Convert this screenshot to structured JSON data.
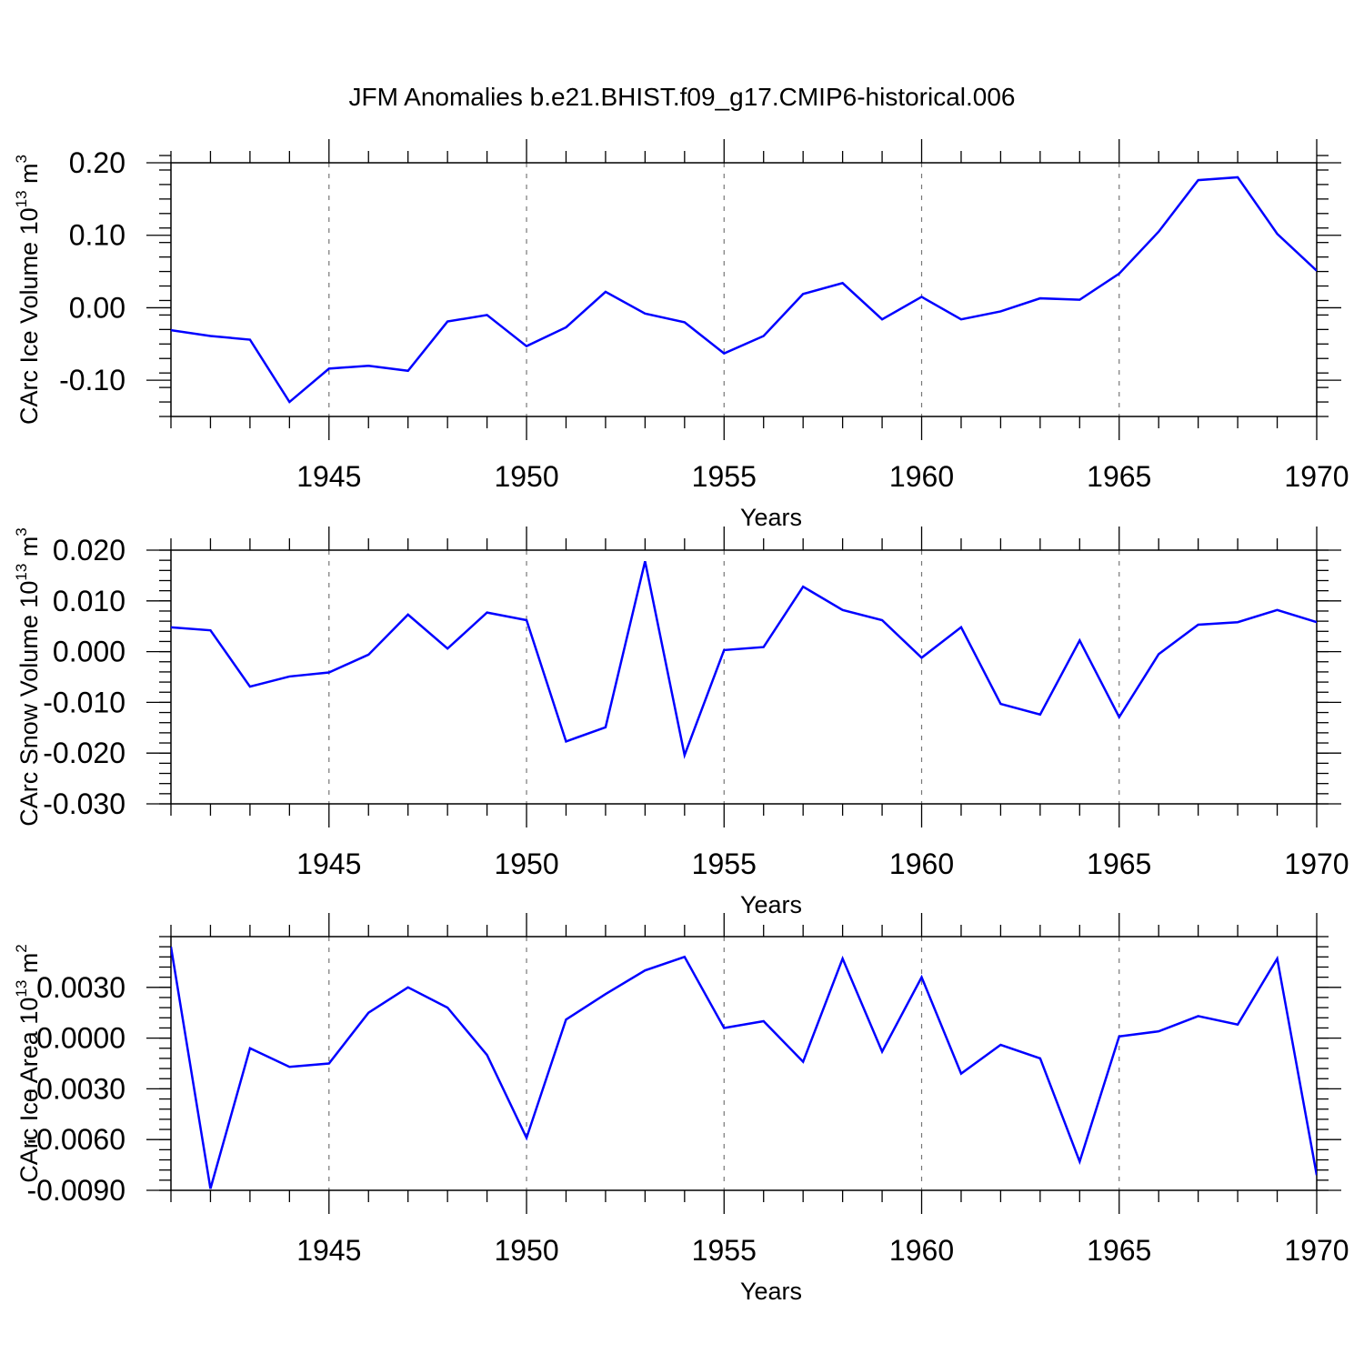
{
  "title": "JFM Anomalies b.e21.BHIST.f09_g17.CMIP6-historical.006",
  "chart_data": [
    {
      "type": "line",
      "name": "ice-volume",
      "ylabel": "CArc Ice Volume 10",
      "ylabel_sup": "13",
      "ylabel_unit": " m",
      "ylabel_unit_sup": "3",
      "xlabel": "Years",
      "xlim": [
        1941,
        1970
      ],
      "ylim": [
        -0.15,
        0.2
      ],
      "yticks": [
        -0.1,
        0.0,
        0.1,
        0.2
      ],
      "ytick_labels": [
        "-0.10",
        "0.00",
        "0.10",
        "0.20"
      ],
      "y_minor_step": 0.02,
      "xticks": [
        1945,
        1950,
        1955,
        1960,
        1965,
        1970
      ],
      "xtick_labels": [
        "1945",
        "1950",
        "1955",
        "1960",
        "1965",
        "1970"
      ],
      "color": "#0000ff",
      "x": [
        1941,
        1942,
        1943,
        1944,
        1945,
        1946,
        1947,
        1948,
        1949,
        1950,
        1951,
        1952,
        1953,
        1954,
        1955,
        1956,
        1957,
        1958,
        1959,
        1960,
        1961,
        1962,
        1963,
        1964,
        1965,
        1966,
        1967,
        1968,
        1969,
        1970
      ],
      "values": [
        -0.031,
        -0.039,
        -0.044,
        -0.13,
        -0.084,
        -0.08,
        -0.087,
        -0.019,
        -0.01,
        -0.053,
        -0.027,
        0.022,
        -0.008,
        -0.02,
        -0.063,
        -0.039,
        0.019,
        0.034,
        -0.016,
        0.015,
        -0.016,
        -0.005,
        0.013,
        0.011,
        0.047,
        0.105,
        0.176,
        0.18,
        0.102,
        0.051
      ]
    },
    {
      "type": "line",
      "name": "snow-volume",
      "ylabel": "CArc Snow Volume 10",
      "ylabel_sup": "13",
      "ylabel_unit": " m",
      "ylabel_unit_sup": "3",
      "xlabel": "Years",
      "xlim": [
        1941,
        1970
      ],
      "ylim": [
        -0.03,
        0.02
      ],
      "yticks": [
        -0.03,
        -0.02,
        -0.01,
        0.0,
        0.01,
        0.02
      ],
      "ytick_labels": [
        "-0.030",
        "-0.020",
        "-0.010",
        "0.000",
        "0.010",
        "0.020"
      ],
      "y_minor_step": 0.002,
      "xticks": [
        1945,
        1950,
        1955,
        1960,
        1965,
        1970
      ],
      "xtick_labels": [
        "1945",
        "1950",
        "1955",
        "1960",
        "1965",
        "1970"
      ],
      "color": "#0000ff",
      "x": [
        1941,
        1942,
        1943,
        1944,
        1945,
        1946,
        1947,
        1948,
        1949,
        1950,
        1951,
        1952,
        1953,
        1954,
        1955,
        1956,
        1957,
        1958,
        1959,
        1960,
        1961,
        1962,
        1963,
        1964,
        1965,
        1966,
        1967,
        1968,
        1969,
        1970
      ],
      "values": [
        0.0048,
        0.0042,
        -0.0069,
        -0.0049,
        -0.0041,
        -0.0006,
        0.0073,
        0.0006,
        0.0077,
        0.0062,
        -0.0177,
        -0.0149,
        0.0178,
        -0.0204,
        0.0003,
        0.0009,
        0.0128,
        0.0082,
        0.0062,
        -0.0012,
        0.0048,
        -0.0103,
        -0.0124,
        0.0022,
        -0.0129,
        -0.0005,
        0.0053,
        0.0058,
        0.0082,
        0.0058
      ]
    },
    {
      "type": "line",
      "name": "ice-area",
      "ylabel": "CArc Ice Area 10",
      "ylabel_sup": "13",
      "ylabel_unit": " m",
      "ylabel_unit_sup": "2",
      "xlabel": "Years",
      "xlim": [
        1941,
        1970
      ],
      "ylim": [
        -0.009,
        0.006
      ],
      "yticks": [
        -0.009,
        -0.006,
        -0.003,
        0.0,
        0.003
      ],
      "ytick_labels": [
        "-0.0090",
        "-0.0060",
        "-0.0030",
        "0.0000",
        "0.0030"
      ],
      "y_minor_step": 0.0006,
      "xticks": [
        1945,
        1950,
        1955,
        1960,
        1965,
        1970
      ],
      "xtick_labels": [
        "1945",
        "1950",
        "1955",
        "1960",
        "1965",
        "1970"
      ],
      "color": "#0000ff",
      "x": [
        1941,
        1942,
        1943,
        1944,
        1945,
        1946,
        1947,
        1948,
        1949,
        1950,
        1951,
        1952,
        1953,
        1954,
        1955,
        1956,
        1957,
        1958,
        1959,
        1960,
        1961,
        1962,
        1963,
        1964,
        1965,
        1966,
        1967,
        1968,
        1969,
        1970
      ],
      "values": [
        0.0054,
        -0.0089,
        -0.0006,
        -0.0017,
        -0.0015,
        0.0015,
        0.003,
        0.0018,
        -0.001,
        -0.0059,
        0.0011,
        0.0026,
        0.004,
        0.0048,
        0.0006,
        0.001,
        -0.0014,
        0.0047,
        -0.0008,
        0.0036,
        -0.0021,
        -0.0004,
        -0.0012,
        -0.0073,
        0.0001,
        0.0004,
        0.0013,
        0.0008,
        0.0047,
        -0.0081
      ]
    }
  ]
}
